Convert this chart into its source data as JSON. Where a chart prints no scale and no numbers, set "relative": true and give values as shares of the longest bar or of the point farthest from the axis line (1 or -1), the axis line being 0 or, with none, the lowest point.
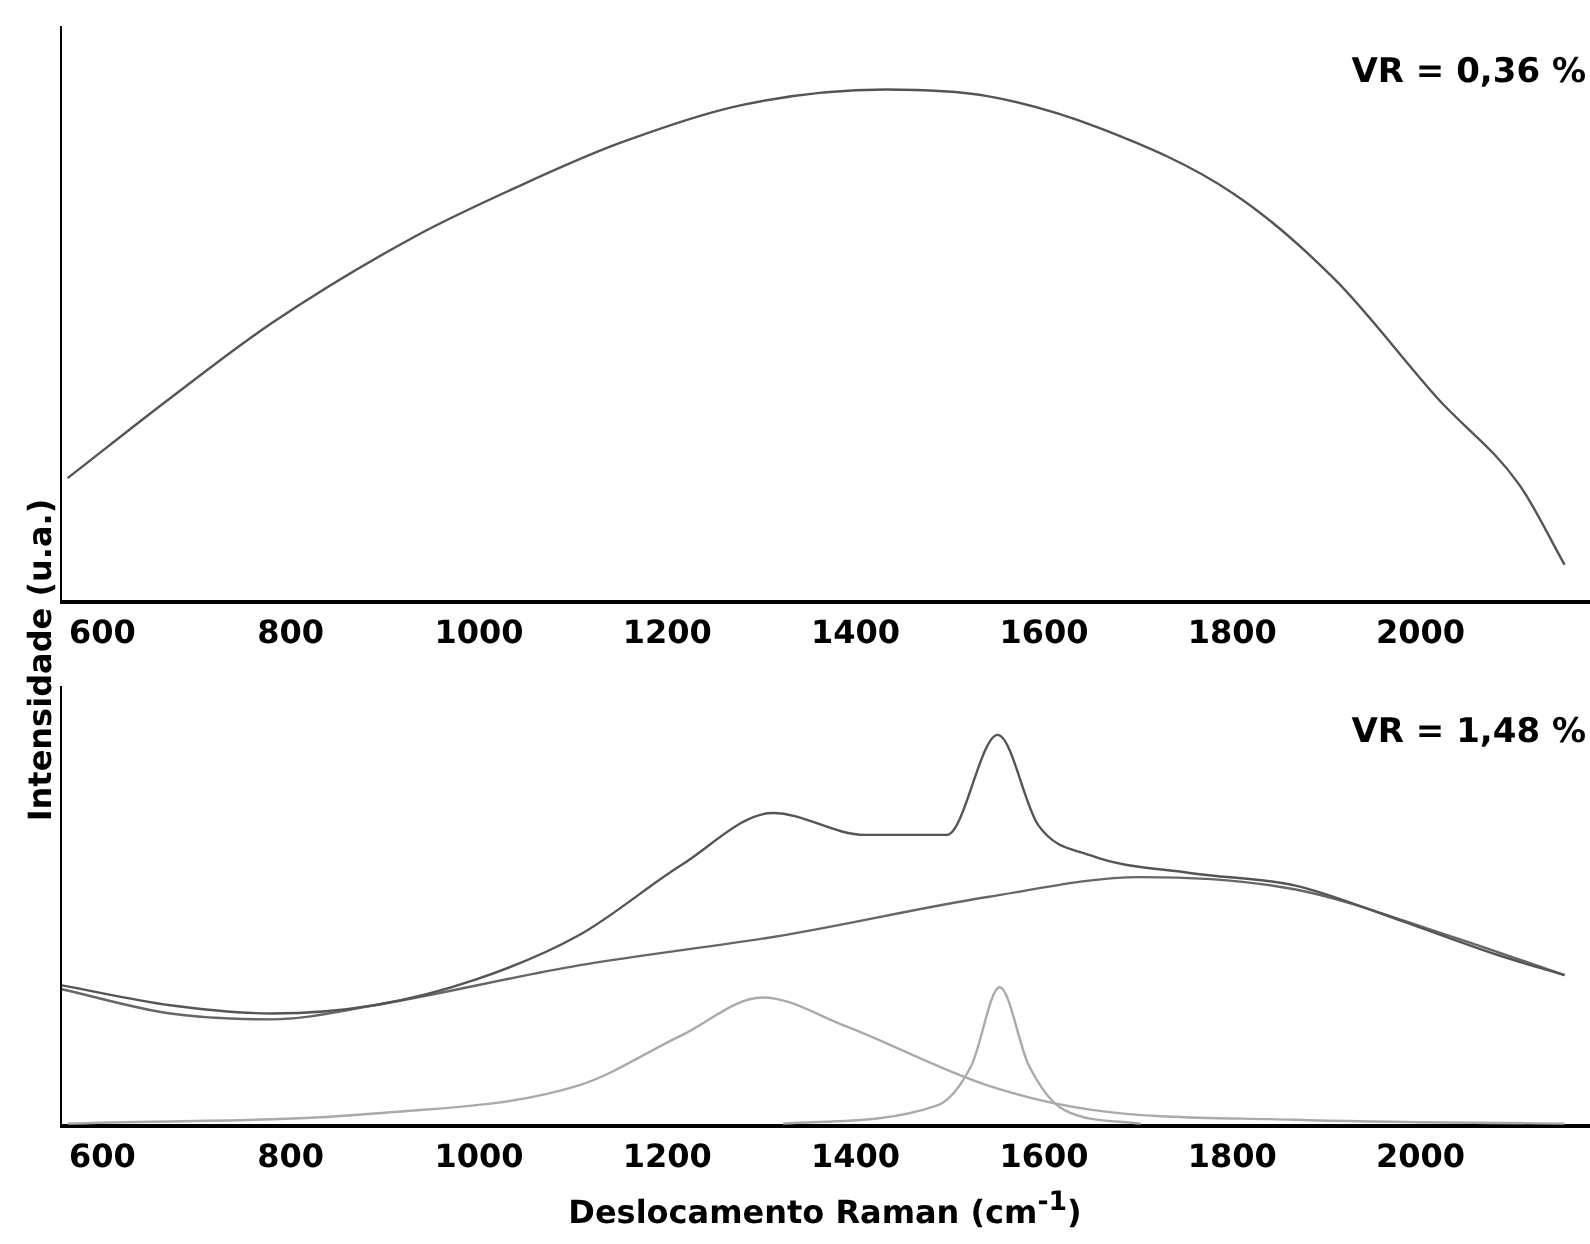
{
  "chart_data": [
    {
      "type": "line",
      "ylabel": "Intensidade (u.a.)",
      "relative": true,
      "xlim": [
        555,
        2180
      ],
      "xticks": [
        600,
        800,
        1000,
        1200,
        1400,
        1600,
        1800,
        2000
      ],
      "grid": false,
      "legend": false,
      "tick_labels": "x",
      "annotations": [
        "VR = 0,36 %"
      ],
      "series": [
        {
          "color": "#555555",
          "x": [
            563,
            672,
            780,
            932,
            1041,
            1149,
            1280,
            1432,
            1540,
            1660,
            1801,
            1909,
            2018,
            2105,
            2153
          ],
          "values": [
            0.241,
            0.397,
            0.544,
            0.713,
            0.81,
            0.895,
            0.97,
            1.0,
            0.987,
            0.924,
            0.797,
            0.629,
            0.397,
            0.228,
            0.072
          ]
        }
      ]
    },
    {
      "type": "line",
      "xlabel": "Deslocamento Raman (cm$^{-1}$)",
      "relative": true,
      "xlim": [
        555,
        2180
      ],
      "xticks": [
        600,
        800,
        1000,
        1200,
        1400,
        1600,
        1800,
        2000
      ],
      "grid": false,
      "legend": false,
      "tick_labels": "x",
      "annotations": [
        "VR = 1,48 %"
      ],
      "series": [
        {
          "color": "#555555",
          "x": [
            557,
            672,
            780,
            889,
            997,
            1106,
            1215,
            1312,
            1410,
            1497,
            1551,
            1594,
            1649,
            1757,
            1866,
            1975,
            2083,
            2153
          ],
          "values": [
            0.359,
            0.308,
            0.287,
            0.308,
            0.374,
            0.487,
            0.667,
            0.8,
            0.744,
            0.744,
            1.0,
            0.769,
            0.692,
            0.646,
            0.615,
            0.528,
            0.436,
            0.385
          ]
        },
        {
          "color": "#666666",
          "x": [
            557,
            672,
            780,
            889,
            1106,
            1323,
            1540,
            1703,
            1866,
            2029,
            2153
          ],
          "values": [
            0.349,
            0.287,
            0.272,
            0.308,
            0.41,
            0.487,
            0.585,
            0.636,
            0.605,
            0.487,
            0.385
          ]
        },
        {
          "color": "#aaaaaa",
          "x": [
            563,
            889,
            1106,
            1215,
            1301,
            1388,
            1540,
            1649,
            1866,
            2153
          ],
          "values": [
            0.005,
            0.031,
            0.103,
            0.231,
            0.328,
            0.256,
            0.103,
            0.041,
            0.015,
            0.005
          ]
        },
        {
          "color": "#aaaaaa",
          "x": [
            1323,
            1486,
            1523,
            1553,
            1584,
            1621,
            1703
          ],
          "values": [
            0.005,
            0.051,
            0.154,
            0.354,
            0.154,
            0.041,
            0.005
          ]
        }
      ]
    }
  ]
}
